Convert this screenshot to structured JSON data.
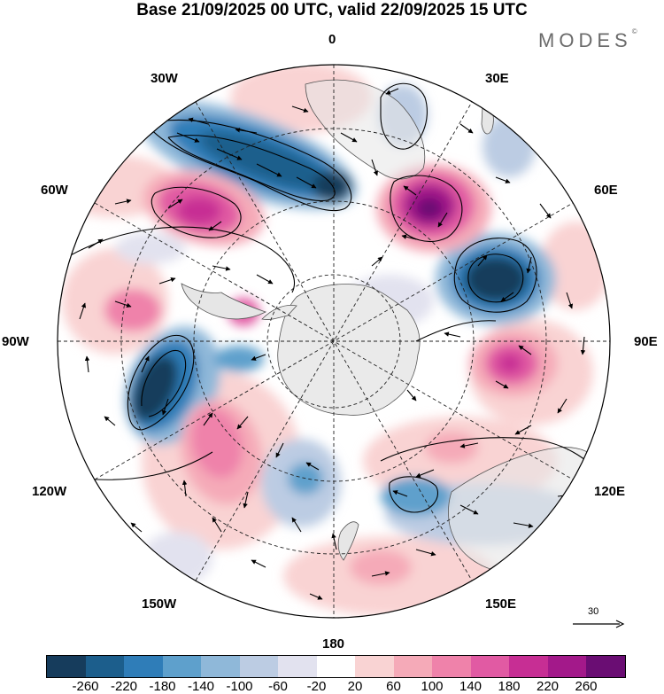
{
  "title": "Base 21/09/2025 00 UTC, valid 22/09/2025 15 UTC",
  "brand": "MODES",
  "brand_mark": "©",
  "longitude_labels": {
    "lon_0": "0",
    "lon_30e": "30E",
    "lon_60e": "60E",
    "lon_90e": "90E",
    "lon_120e": "120E",
    "lon_150e": "150E",
    "lon_180": "180",
    "lon_150w": "150W",
    "lon_120w": "120W",
    "lon_90w": "90W",
    "lon_60w": "60W",
    "lon_30w": "30W"
  },
  "reference_vector": {
    "label": "30"
  },
  "colorbar": {
    "colors": [
      "#163c5c",
      "#1c5e8c",
      "#2f7db8",
      "#5ea0cc",
      "#8fb8d9",
      "#bccce3",
      "#e2e2ef",
      "#ffffff",
      "#f9d3d3",
      "#f5aab8",
      "#ef82aa",
      "#e15aa3",
      "#c72e94",
      "#a3198a",
      "#6a0d73"
    ],
    "ticks": [
      "-260",
      "-220",
      "-180",
      "-140",
      "-100",
      "-60",
      "-20",
      "20",
      "60",
      "100",
      "140",
      "180",
      "220",
      "260"
    ]
  },
  "map_colors": {
    "ocean": "#ffffff",
    "antarctica": "#eaeaea",
    "land": "#e6e6e6",
    "coast": "#555555",
    "grid": "#222222",
    "contour": "#000000"
  }
}
